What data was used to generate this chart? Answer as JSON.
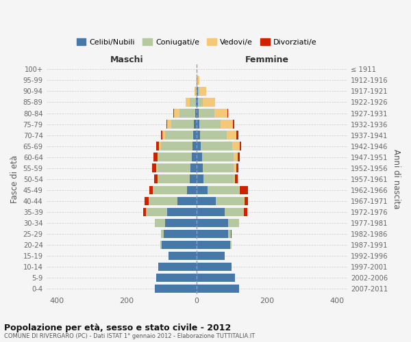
{
  "age_groups": [
    "0-4",
    "5-9",
    "10-14",
    "15-19",
    "20-24",
    "25-29",
    "30-34",
    "35-39",
    "40-44",
    "45-49",
    "50-54",
    "55-59",
    "60-64",
    "65-69",
    "70-74",
    "75-79",
    "80-84",
    "85-89",
    "90-94",
    "95-99",
    "100+"
  ],
  "birth_years": [
    "2007-2011",
    "2002-2006",
    "1997-2001",
    "1992-1996",
    "1987-1991",
    "1982-1986",
    "1977-1981",
    "1972-1976",
    "1967-1971",
    "1962-1966",
    "1957-1961",
    "1952-1956",
    "1947-1951",
    "1942-1946",
    "1937-1941",
    "1932-1936",
    "1927-1931",
    "1922-1926",
    "1917-1921",
    "1912-1916",
    "≤ 1911"
  ],
  "colors": {
    "celibe": "#4878a8",
    "coniugato": "#b5c8a0",
    "vedovo": "#f5c878",
    "divorziato": "#cc2200"
  },
  "male": {
    "celibe": [
      120,
      115,
      110,
      80,
      100,
      95,
      90,
      85,
      55,
      28,
      20,
      18,
      15,
      12,
      10,
      8,
      5,
      3,
      0,
      0,
      0
    ],
    "coniugato": [
      0,
      0,
      0,
      0,
      5,
      8,
      30,
      60,
      80,
      95,
      90,
      95,
      95,
      90,
      80,
      65,
      45,
      18,
      4,
      0,
      0
    ],
    "vedovo": [
      0,
      0,
      0,
      0,
      0,
      0,
      0,
      0,
      2,
      2,
      2,
      2,
      3,
      6,
      8,
      12,
      15,
      10,
      2,
      0,
      0
    ],
    "divorziato": [
      0,
      0,
      0,
      0,
      0,
      0,
      0,
      8,
      12,
      10,
      10,
      12,
      10,
      8,
      5,
      2,
      2,
      0,
      0,
      0,
      0
    ]
  },
  "female": {
    "nubile": [
      120,
      110,
      100,
      80,
      95,
      90,
      90,
      80,
      55,
      30,
      20,
      18,
      15,
      12,
      10,
      8,
      5,
      3,
      3,
      2,
      0
    ],
    "coniugata": [
      0,
      0,
      0,
      0,
      5,
      8,
      30,
      55,
      80,
      90,
      85,
      88,
      90,
      90,
      75,
      60,
      45,
      15,
      5,
      0,
      0
    ],
    "vedova": [
      0,
      0,
      0,
      0,
      0,
      0,
      0,
      0,
      2,
      2,
      4,
      8,
      12,
      20,
      28,
      35,
      38,
      35,
      18,
      5,
      0
    ],
    "divorziata": [
      0,
      0,
      0,
      0,
      0,
      2,
      0,
      10,
      10,
      25,
      8,
      5,
      5,
      5,
      5,
      5,
      2,
      0,
      0,
      0,
      0
    ]
  },
  "xlim": [
    -430,
    430
  ],
  "xticks": [
    -400,
    -200,
    0,
    200,
    400
  ],
  "xticklabels": [
    "400",
    "200",
    "0",
    "200",
    "400"
  ],
  "title_main": "Popolazione per età, sesso e stato civile - 2012",
  "title_sub": "COMUNE DI RIVERGARO (PC) - Dati ISTAT 1° gennaio 2012 - Elaborazione TUTTITALIA.IT",
  "ylabel_left": "Fasce di età",
  "ylabel_right": "Anni di nascita",
  "label_maschi": "Maschi",
  "label_femmine": "Femmine",
  "legend_labels": [
    "Celibi/Nubili",
    "Coniugati/e",
    "Vedovi/e",
    "Divorziati/e"
  ],
  "background_color": "#f5f5f5",
  "grid_color": "#cccccc"
}
